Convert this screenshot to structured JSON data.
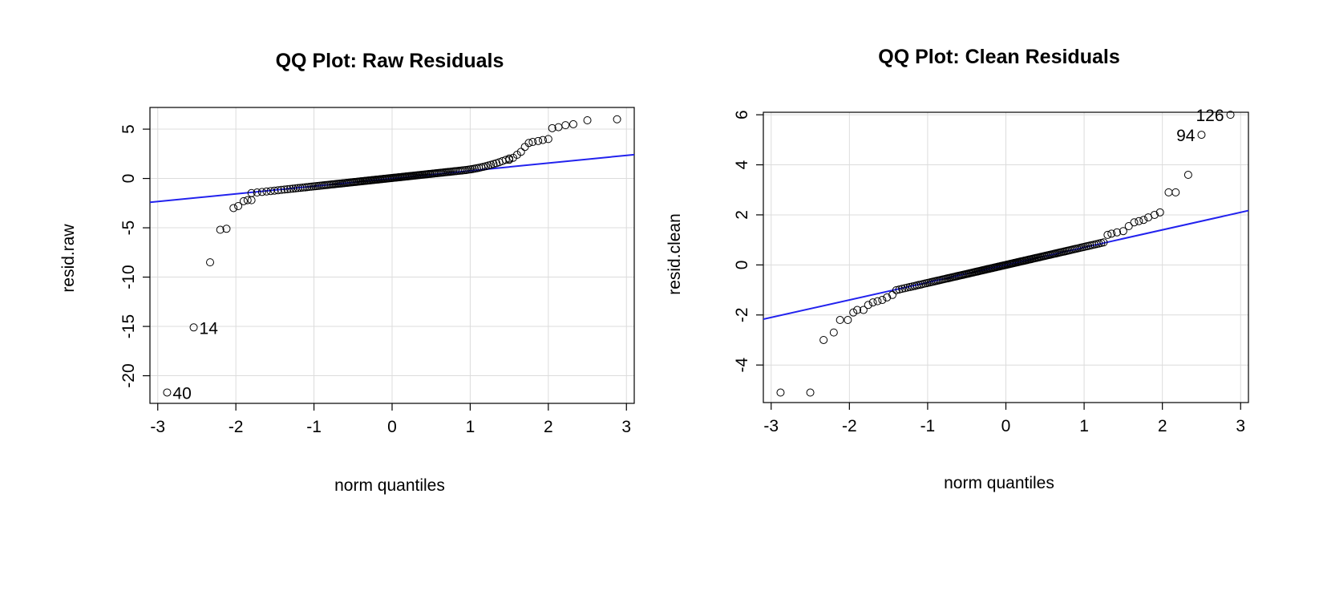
{
  "chart_data": [
    {
      "type": "scatter",
      "title": "QQ Plot: Raw Residuals",
      "xlabel": "norm quantiles",
      "ylabel": "resid.raw",
      "xlim": [
        -3.1,
        3.1
      ],
      "ylim": [
        -22.8,
        7.2
      ],
      "x_ticks": [
        -3,
        -2,
        -1,
        0,
        1,
        2,
        3
      ],
      "x_tick_labels": [
        "-3",
        "-2",
        "-1",
        "0",
        "1",
        "2",
        "3"
      ],
      "y_ticks": [
        5,
        0,
        -5,
        -10,
        -15,
        -20
      ],
      "y_tick_labels": [
        "5",
        "0",
        "-5",
        "-10",
        "-15",
        "-20"
      ],
      "grid": true,
      "line_color": "#2222ee",
      "reference_line": {
        "intercept": 0.0,
        "slope": 0.78
      },
      "point_labels": [
        {
          "text": "14",
          "x": -2.54,
          "y": -15.1
        },
        {
          "text": "40",
          "x": -2.88,
          "y": -21.7
        }
      ],
      "tail_points": [
        [
          -2.88,
          -21.7
        ],
        [
          -2.54,
          -15.1
        ],
        [
          -2.33,
          -8.5
        ],
        [
          -2.2,
          -5.2
        ],
        [
          -2.12,
          -5.1
        ],
        [
          -2.03,
          -3.0
        ],
        [
          -1.97,
          -2.8
        ],
        [
          -1.9,
          -2.3
        ],
        [
          -1.85,
          -2.2
        ],
        [
          -1.8,
          -2.2
        ],
        [
          1.5,
          1.9
        ],
        [
          1.55,
          2.1
        ],
        [
          1.6,
          2.4
        ],
        [
          1.65,
          2.7
        ],
        [
          1.7,
          3.2
        ],
        [
          1.75,
          3.6
        ],
        [
          1.8,
          3.7
        ],
        [
          1.87,
          3.8
        ],
        [
          1.93,
          3.9
        ],
        [
          2.0,
          4.0
        ],
        [
          2.05,
          5.1
        ],
        [
          2.13,
          5.2
        ],
        [
          2.22,
          5.4
        ],
        [
          2.32,
          5.5
        ],
        [
          2.5,
          5.9
        ],
        [
          2.88,
          6.0
        ]
      ],
      "central_points": {
        "x_range": [
          -1.8,
          1.5
        ],
        "count": 150,
        "intercept": 0.05,
        "slope": 0.85,
        "bend_from": 0.9,
        "bend_to": 1.5,
        "bend_rise": 0.7
      }
    },
    {
      "type": "scatter",
      "title": "QQ Plot: Clean Residuals",
      "xlabel": "norm quantiles",
      "ylabel": "resid.clean",
      "xlim": [
        -3.1,
        3.1
      ],
      "ylim": [
        -5.5,
        6.1
      ],
      "x_ticks": [
        -3,
        -2,
        -1,
        0,
        1,
        2,
        3
      ],
      "x_tick_labels": [
        "-3",
        "-2",
        "-1",
        "0",
        "1",
        "2",
        "3"
      ],
      "y_ticks": [
        6,
        4,
        2,
        0,
        -2,
        -4
      ],
      "y_tick_labels": [
        "6",
        "4",
        "2",
        "0",
        "-2",
        "-4"
      ],
      "grid": true,
      "line_color": "#2222ee",
      "reference_line": {
        "intercept": 0.0,
        "slope": 0.7
      },
      "point_labels": [
        {
          "text": "126",
          "x": 2.87,
          "y": 6.0
        },
        {
          "text": "94",
          "x": 2.5,
          "y": 5.2
        }
      ],
      "tail_points": [
        [
          -2.88,
          -5.1
        ],
        [
          -2.5,
          -5.1
        ],
        [
          -2.33,
          -3.0
        ],
        [
          -2.2,
          -2.7
        ],
        [
          -2.12,
          -2.2
        ],
        [
          -2.02,
          -2.2
        ],
        [
          -1.95,
          -1.9
        ],
        [
          -1.9,
          -1.8
        ],
        [
          -1.82,
          -1.8
        ],
        [
          -1.76,
          -1.6
        ],
        [
          -1.7,
          -1.5
        ],
        [
          -1.64,
          -1.45
        ],
        [
          -1.58,
          -1.4
        ],
        [
          -1.52,
          -1.3
        ],
        [
          -1.45,
          -1.2
        ],
        [
          1.3,
          1.2
        ],
        [
          1.35,
          1.25
        ],
        [
          1.42,
          1.3
        ],
        [
          1.5,
          1.35
        ],
        [
          1.57,
          1.55
        ],
        [
          1.64,
          1.7
        ],
        [
          1.7,
          1.75
        ],
        [
          1.76,
          1.8
        ],
        [
          1.82,
          1.9
        ],
        [
          1.9,
          2.0
        ],
        [
          1.97,
          2.1
        ],
        [
          2.08,
          2.9
        ],
        [
          2.17,
          2.9
        ],
        [
          2.33,
          3.6
        ],
        [
          2.5,
          5.2
        ],
        [
          2.87,
          6.0
        ]
      ],
      "central_points": {
        "x_range": [
          -1.4,
          1.25
        ],
        "count": 140,
        "intercept": 0.0,
        "slope": 0.72,
        "bend_from": 2.0,
        "bend_to": 2.0,
        "bend_rise": 0.0
      }
    }
  ]
}
